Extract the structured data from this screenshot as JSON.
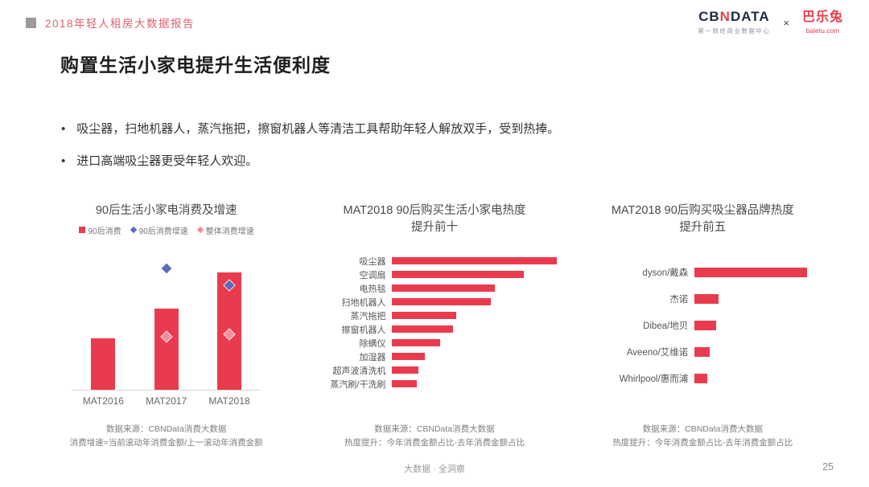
{
  "header": {
    "report_title": "2018年轻人租房大数据报告",
    "cbn_parts": [
      "CB",
      "N",
      "DATA"
    ],
    "cbn_sub": "第一财经商业数据中心",
    "logo_separator": "×",
    "baletu": "巴乐兔",
    "baletu_sub": "baletu.com"
  },
  "page": {
    "title": "购置生活小家电提升生活便利度",
    "bullet_char": "•",
    "bullets": [
      "吸尘器，扫地机器人，蒸汽拖把，擦窗机器人等清洁工具帮助年轻人解放双手，受到热捧。",
      "进口高端吸尘器更受年轻人欢迎。"
    ],
    "footer_center": "大数据 · 全洞察",
    "page_number": "25"
  },
  "colors": {
    "accent_red": "#ea3b4e",
    "diamond_blue": "#5c6bc0",
    "diamond_pink": "#ef8f9b"
  },
  "chart_data": [
    {
      "type": "bar",
      "title": "90后生活小家电消费及增速",
      "categories": [
        "MAT2016",
        "MAT2017",
        "MAT2018"
      ],
      "value_scale": "percent-of-plot-height-estimated (no numeric axis shown)",
      "series": [
        {
          "name": "90后消费",
          "type": "bar",
          "marker": "square",
          "color": "#ea3b4e",
          "values": [
            36,
            57,
            82
          ]
        },
        {
          "name": "90后消费增速",
          "type": "scatter",
          "marker": "diamond",
          "color": "#5c6bc0",
          "values": [
            null,
            85,
            73
          ]
        },
        {
          "name": "整体消费增速",
          "type": "scatter",
          "marker": "diamond",
          "color": "#ef8f9b",
          "values": [
            null,
            37,
            39
          ]
        }
      ],
      "legend_position": "top",
      "grid": false,
      "source": "数据来源：CBNData消费大数据",
      "note": "消费增速=当前滚动年消费金额/上一滚动年消费金额"
    },
    {
      "type": "bar",
      "orientation": "horizontal",
      "title": "MAT2018 90后购买生活小家电热度提升前十",
      "categories": [
        "吸尘器",
        "空调扇",
        "电热毯",
        "扫地机器人",
        "蒸汽拖把",
        "擦窗机器人",
        "除螨仪",
        "加湿器",
        "超声波清洗机",
        "蒸汽刷/干洗刷"
      ],
      "value_scale": "percent-of-longest-bar-estimated (no numeric axis shown)",
      "values": [
        100,
        80,
        62,
        60,
        39,
        37,
        29,
        20,
        16,
        15
      ],
      "grid": false,
      "source": "数据来源：CBNData消费大数据",
      "note": "热度提升：今年消费金额占比-去年消费金额占比"
    },
    {
      "type": "bar",
      "orientation": "horizontal",
      "title": "MAT2018 90后购买吸尘器品牌热度提升前五",
      "categories": [
        "dyson/戴森",
        "杰诺",
        "Dibea/地贝",
        "Aveeno/艾维诺",
        "Whirlpool/惠而浦"
      ],
      "value_scale": "percent-of-longest-bar-estimated (no numeric axis shown)",
      "values": [
        100,
        21,
        19,
        13,
        11
      ],
      "grid": false,
      "source": "数据来源：CBNData消费大数据",
      "note": "热度提升：今年消费金额占比-去年消费金额占比"
    }
  ]
}
